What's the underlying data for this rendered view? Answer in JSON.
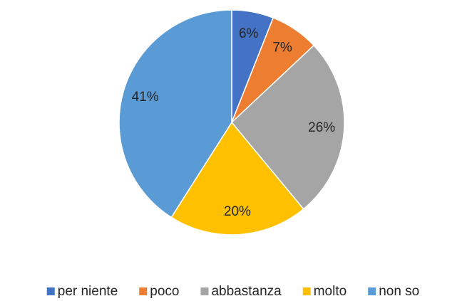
{
  "chart_data": {
    "type": "pie",
    "categories": [
      "per niente",
      "poco",
      "abbastanza",
      "molto",
      "non so"
    ],
    "values": [
      6,
      7,
      26,
      20,
      41
    ],
    "value_labels": [
      "6%",
      "7%",
      "26%",
      "20%",
      "41%"
    ],
    "colors": [
      "#4472c4",
      "#ed7d31",
      "#a5a5a5",
      "#ffc000",
      "#5b9bd5"
    ],
    "legend": "bottom"
  }
}
